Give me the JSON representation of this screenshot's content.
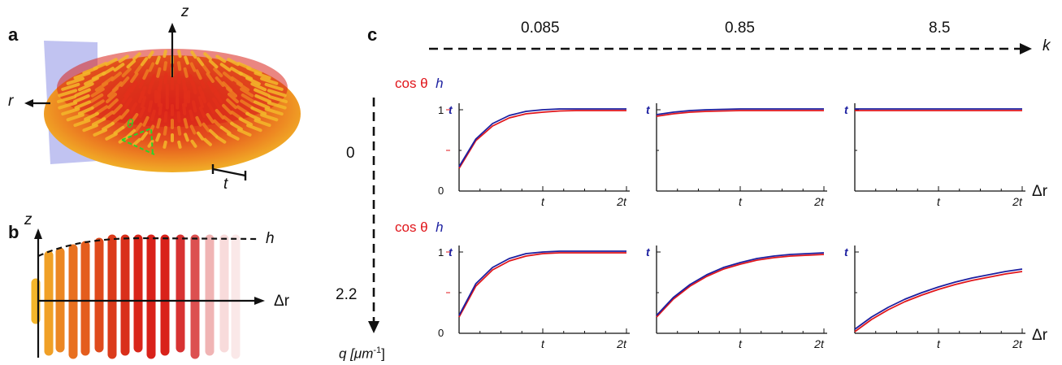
{
  "panels": {
    "a": {
      "letter": "a",
      "axis_z": "z",
      "axis_r": "r",
      "angle": "θ",
      "thickness": "t"
    },
    "b": {
      "letter": "b",
      "axis_z": "z",
      "height": "h",
      "dr": "Δr"
    },
    "c": {
      "letter": "c"
    }
  },
  "colors": {
    "cos_theta": "#e0161b",
    "h": "#1c1fa0",
    "rod_inner": "#d9221a",
    "rod_outer": "#f2c22a"
  },
  "grid": {
    "k_axis_label": "k",
    "k_values": [
      "0.085",
      "0.85",
      "8.5"
    ],
    "q_axis_label": "q [μm",
    "q_unit_sup": "-1",
    "q_unit_close": "]",
    "q_values": [
      "0",
      "2.2"
    ],
    "legend_cos": "cos θ",
    "legend_h": "h",
    "x_axis_label": "Δr",
    "x_ticks": [
      "t",
      "2t"
    ],
    "y_ticks_left": [
      "0",
      "1"
    ],
    "y_tick_blue": "t"
  },
  "chart_data": [
    {
      "type": "line",
      "row_q": "0",
      "col_k": "0.085",
      "x": [
        0,
        0.2,
        0.4,
        0.6,
        0.8,
        1.0,
        1.2,
        1.4,
        1.6,
        1.8,
        2.0
      ],
      "series": [
        {
          "name": "cos θ",
          "values": [
            0.28,
            0.62,
            0.8,
            0.9,
            0.95,
            0.97,
            0.985,
            0.99,
            0.99,
            0.99,
            0.99
          ]
        },
        {
          "name": "h",
          "values": [
            0.3,
            0.64,
            0.83,
            0.93,
            0.98,
            1.0,
            1.01,
            1.01,
            1.01,
            1.01,
            1.01
          ]
        }
      ],
      "xlabel": "Δr",
      "ylim": [
        0,
        1
      ]
    },
    {
      "type": "line",
      "row_q": "0",
      "col_k": "0.85",
      "x": [
        0,
        0.2,
        0.4,
        0.6,
        0.8,
        1.0,
        1.2,
        1.4,
        1.6,
        1.8,
        2.0
      ],
      "series": [
        {
          "name": "cos θ",
          "values": [
            0.92,
            0.95,
            0.97,
            0.98,
            0.985,
            0.99,
            0.99,
            0.99,
            0.99,
            0.99,
            0.99
          ]
        },
        {
          "name": "h",
          "values": [
            0.94,
            0.97,
            0.99,
            1.0,
            1.005,
            1.01,
            1.01,
            1.01,
            1.01,
            1.01,
            1.01
          ]
        }
      ],
      "xlabel": "Δr",
      "ylim": [
        0,
        1
      ]
    },
    {
      "type": "line",
      "row_q": "0",
      "col_k": "8.5",
      "x": [
        0,
        2.0
      ],
      "series": [
        {
          "name": "cos θ",
          "values": [
            0.99,
            0.99
          ]
        },
        {
          "name": "h",
          "values": [
            1.01,
            1.01
          ]
        }
      ],
      "xlabel": "Δr",
      "ylim": [
        0,
        1
      ]
    },
    {
      "type": "line",
      "row_q": "2.2",
      "col_k": "0.085",
      "x": [
        0,
        0.2,
        0.4,
        0.6,
        0.8,
        1.0,
        1.2,
        1.4,
        1.6,
        1.8,
        2.0
      ],
      "series": [
        {
          "name": "cos θ",
          "values": [
            0.2,
            0.58,
            0.78,
            0.89,
            0.95,
            0.98,
            0.99,
            0.99,
            0.99,
            0.99,
            0.99
          ]
        },
        {
          "name": "h",
          "values": [
            0.22,
            0.61,
            0.81,
            0.92,
            0.98,
            1.0,
            1.01,
            1.01,
            1.01,
            1.01,
            1.01
          ]
        }
      ],
      "xlabel": "Δr",
      "ylim": [
        0,
        1
      ]
    },
    {
      "type": "line",
      "row_q": "2.2",
      "col_k": "0.85",
      "x": [
        0,
        0.2,
        0.4,
        0.6,
        0.8,
        1.0,
        1.2,
        1.4,
        1.6,
        1.8,
        2.0
      ],
      "series": [
        {
          "name": "cos θ",
          "values": [
            0.2,
            0.42,
            0.58,
            0.7,
            0.79,
            0.85,
            0.9,
            0.93,
            0.95,
            0.96,
            0.97
          ]
        },
        {
          "name": "h",
          "values": [
            0.22,
            0.44,
            0.6,
            0.72,
            0.81,
            0.87,
            0.92,
            0.95,
            0.97,
            0.98,
            0.99
          ]
        }
      ],
      "xlabel": "Δr",
      "ylim": [
        0,
        1
      ]
    },
    {
      "type": "line",
      "row_q": "2.2",
      "col_k": "8.5",
      "x": [
        0,
        0.2,
        0.4,
        0.6,
        0.8,
        1.0,
        1.2,
        1.4,
        1.6,
        1.8,
        2.0
      ],
      "series": [
        {
          "name": "cos θ",
          "values": [
            0.02,
            0.17,
            0.29,
            0.39,
            0.47,
            0.54,
            0.6,
            0.65,
            0.69,
            0.73,
            0.76
          ]
        },
        {
          "name": "h",
          "values": [
            0.05,
            0.2,
            0.32,
            0.42,
            0.5,
            0.57,
            0.63,
            0.68,
            0.72,
            0.76,
            0.79
          ]
        }
      ],
      "xlabel": "Δr",
      "ylim": [
        0,
        1
      ]
    }
  ]
}
